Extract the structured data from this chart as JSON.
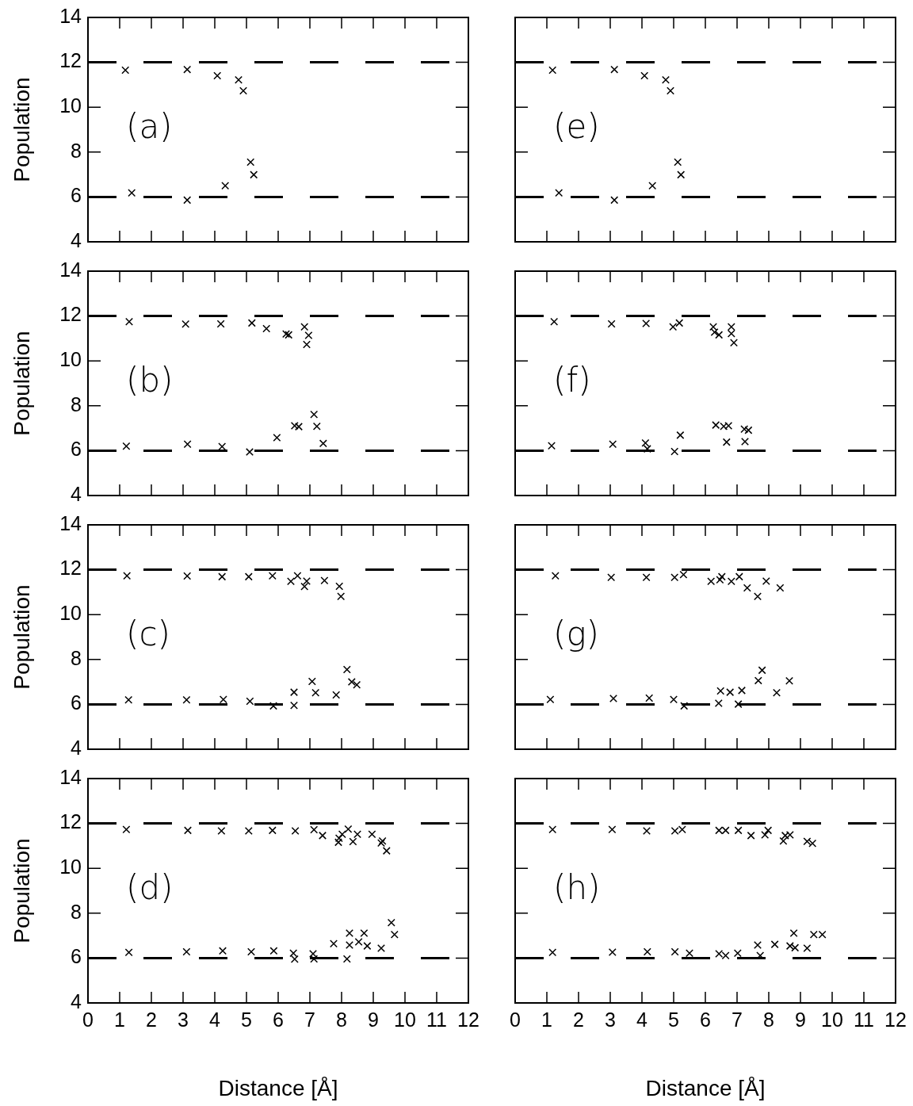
{
  "chart_data": [
    {
      "type": "scatter",
      "x": [
        1.18,
        3.13,
        4.08,
        4.75,
        4.9,
        1.38,
        3.13,
        4.33,
        5.13,
        5.23
      ],
      "values": [
        11.65,
        11.68,
        11.4,
        11.22,
        10.73,
        6.18,
        5.86,
        6.5,
        7.55,
        6.99
      ],
      "color": "#000000",
      "marker": "cross",
      "ylabel": "Population",
      "xlim": [
        0,
        12
      ],
      "ylim": [
        4,
        14
      ],
      "xticks": [
        0,
        1,
        2,
        3,
        4,
        5,
        6,
        7,
        8,
        9,
        10,
        11,
        12
      ],
      "yticks": [
        4,
        6,
        8,
        10,
        12,
        14
      ],
      "tick_labels": "y",
      "annotations": [
        "(a)"
      ],
      "ref_lines": [
        {
          "axis": "y",
          "value": 12,
          "line_style": "dashed"
        },
        {
          "axis": "y",
          "value": 6,
          "line_style": "dashed"
        }
      ]
    },
    {
      "type": "scatter",
      "x": [
        1.18,
        3.13,
        4.08,
        4.75,
        4.9,
        1.38,
        3.13,
        4.33,
        5.13,
        5.23
      ],
      "values": [
        11.65,
        11.68,
        11.4,
        11.22,
        10.73,
        6.18,
        5.86,
        6.5,
        7.55,
        6.99
      ],
      "color": "#000000",
      "marker": "cross",
      "xlim": [
        0,
        12
      ],
      "ylim": [
        4,
        14
      ],
      "xticks": [
        0,
        1,
        2,
        3,
        4,
        5,
        6,
        7,
        8,
        9,
        10,
        11,
        12
      ],
      "yticks": [
        4,
        6,
        8,
        10,
        12,
        14
      ],
      "tick_labels": false,
      "annotations": [
        "(e)"
      ],
      "ref_lines": [
        {
          "axis": "y",
          "value": 12,
          "line_style": "dashed"
        },
        {
          "axis": "y",
          "value": 6,
          "line_style": "dashed"
        }
      ]
    },
    {
      "type": "scatter",
      "x": [
        1.3,
        3.08,
        4.19,
        5.17,
        5.63,
        6.25,
        6.33,
        6.83,
        6.96,
        6.9,
        1.21,
        3.14,
        4.23,
        5.1,
        5.96,
        6.52,
        6.65,
        7.13,
        7.22,
        7.42
      ],
      "values": [
        11.75,
        11.64,
        11.65,
        11.69,
        11.44,
        11.2,
        11.16,
        11.52,
        11.14,
        10.73,
        6.2,
        6.29,
        6.18,
        5.94,
        6.58,
        7.11,
        7.07,
        7.61,
        7.08,
        6.32
      ],
      "color": "#000000",
      "marker": "cross",
      "ylabel": "Population",
      "xlim": [
        0,
        12
      ],
      "ylim": [
        4,
        14
      ],
      "xticks": [
        0,
        1,
        2,
        3,
        4,
        5,
        6,
        7,
        8,
        9,
        10,
        11,
        12
      ],
      "yticks": [
        4,
        6,
        8,
        10,
        12,
        14
      ],
      "tick_labels": "y",
      "annotations": [
        "(b)"
      ],
      "ref_lines": [
        {
          "axis": "y",
          "value": 12,
          "line_style": "dashed"
        },
        {
          "axis": "y",
          "value": 6,
          "line_style": "dashed"
        }
      ]
    },
    {
      "type": "scatter",
      "x": [
        1.23,
        3.04,
        4.13,
        4.98,
        5.18,
        6.25,
        6.29,
        6.43,
        6.82,
        6.82,
        6.9,
        1.15,
        3.08,
        4.11,
        4.17,
        5.03,
        5.21,
        6.33,
        6.58,
        6.73,
        6.67,
        7.23,
        7.36,
        7.25
      ],
      "values": [
        11.75,
        11.65,
        11.67,
        11.52,
        11.69,
        11.52,
        11.28,
        11.16,
        11.52,
        11.22,
        10.81,
        6.22,
        6.29,
        6.34,
        6.08,
        5.96,
        6.69,
        7.14,
        7.08,
        7.11,
        6.38,
        6.96,
        6.91,
        6.4
      ],
      "color": "#000000",
      "marker": "cross",
      "xlim": [
        0,
        12
      ],
      "ylim": [
        4,
        14
      ],
      "xticks": [
        0,
        1,
        2,
        3,
        4,
        5,
        6,
        7,
        8,
        9,
        10,
        11,
        12
      ],
      "yticks": [
        4,
        6,
        8,
        10,
        12,
        14
      ],
      "tick_labels": false,
      "annotations": [
        "(f)"
      ],
      "ref_lines": [
        {
          "axis": "y",
          "value": 12,
          "line_style": "dashed"
        },
        {
          "axis": "y",
          "value": 6,
          "line_style": "dashed"
        }
      ]
    },
    {
      "type": "scatter",
      "x": [
        1.23,
        3.13,
        4.23,
        5.07,
        5.82,
        6.4,
        6.61,
        6.83,
        6.9,
        7.46,
        7.93,
        7.98,
        1.28,
        3.11,
        4.27,
        5.11,
        5.85,
        6.5,
        6.5,
        7.07,
        7.18,
        7.83,
        8.17,
        8.32,
        8.48
      ],
      "values": [
        11.73,
        11.72,
        11.69,
        11.69,
        11.73,
        11.48,
        11.73,
        11.25,
        11.49,
        11.52,
        11.26,
        10.81,
        6.2,
        6.2,
        6.22,
        6.14,
        5.93,
        6.54,
        5.95,
        7.02,
        6.52,
        6.42,
        7.55,
        7.0,
        6.87
      ],
      "color": "#000000",
      "marker": "cross",
      "ylabel": "Population",
      "xlim": [
        0,
        12
      ],
      "ylim": [
        4,
        14
      ],
      "xticks": [
        0,
        1,
        2,
        3,
        4,
        5,
        6,
        7,
        8,
        9,
        10,
        11,
        12
      ],
      "yticks": [
        4,
        6,
        8,
        10,
        12,
        14
      ],
      "tick_labels": "y",
      "annotations": [
        "(c)"
      ],
      "ref_lines": [
        {
          "axis": "y",
          "value": 12,
          "line_style": "dashed"
        },
        {
          "axis": "y",
          "value": 6,
          "line_style": "dashed"
        }
      ]
    },
    {
      "type": "scatter",
      "x": [
        1.27,
        3.03,
        4.14,
        5.03,
        5.31,
        6.18,
        6.46,
        6.52,
        6.82,
        7.07,
        7.32,
        7.65,
        7.92,
        8.36,
        1.11,
        3.1,
        4.23,
        5.0,
        5.33,
        6.42,
        6.48,
        6.78,
        7.04,
        7.15,
        7.67,
        7.79,
        8.25,
        8.65
      ],
      "values": [
        11.73,
        11.66,
        11.66,
        11.66,
        11.78,
        11.48,
        11.55,
        11.69,
        11.48,
        11.69,
        11.19,
        10.81,
        11.49,
        11.19,
        6.22,
        6.26,
        6.28,
        6.22,
        5.93,
        6.05,
        6.6,
        6.54,
        6.01,
        6.62,
        7.06,
        7.52,
        6.52,
        7.05
      ],
      "color": "#000000",
      "marker": "cross",
      "xlim": [
        0,
        12
      ],
      "ylim": [
        4,
        14
      ],
      "xticks": [
        0,
        1,
        2,
        3,
        4,
        5,
        6,
        7,
        8,
        9,
        10,
        11,
        12
      ],
      "yticks": [
        4,
        6,
        8,
        10,
        12,
        14
      ],
      "tick_labels": false,
      "annotations": [
        "(g)"
      ],
      "ref_lines": [
        {
          "axis": "y",
          "value": 12,
          "line_style": "dashed"
        },
        {
          "axis": "y",
          "value": 6,
          "line_style": "dashed"
        }
      ]
    },
    {
      "type": "scatter",
      "x": [
        1.21,
        3.15,
        4.21,
        5.07,
        5.82,
        6.54,
        7.13,
        7.4,
        7.92,
        8.02,
        8.21,
        8.36,
        8.5,
        8.96,
        9.29,
        9.42,
        9.25,
        7.9,
        1.29,
        3.11,
        4.25,
        5.15,
        5.86,
        6.48,
        6.52,
        7.1,
        7.13,
        7.75,
        8.17,
        8.25,
        8.25,
        8.54,
        8.71,
        8.81,
        9.25,
        9.57,
        9.67
      ],
      "values": [
        11.73,
        11.69,
        11.67,
        11.67,
        11.69,
        11.67,
        11.72,
        11.46,
        11.34,
        11.52,
        11.75,
        11.19,
        11.52,
        11.52,
        11.22,
        10.78,
        11.13,
        11.16,
        6.25,
        6.28,
        6.32,
        6.28,
        6.32,
        6.22,
        5.95,
        6.19,
        5.96,
        6.64,
        5.96,
        7.11,
        6.58,
        6.72,
        7.11,
        6.54,
        6.44,
        7.58,
        7.05
      ],
      "color": "#000000",
      "marker": "cross",
      "ylabel": "Population",
      "xlabel": "Distance [Å]",
      "xlim": [
        0,
        12
      ],
      "ylim": [
        4,
        14
      ],
      "xticks": [
        0,
        1,
        2,
        3,
        4,
        5,
        6,
        7,
        8,
        9,
        10,
        11,
        12
      ],
      "yticks": [
        4,
        6,
        8,
        10,
        12,
        14
      ],
      "annotations": [
        "(d)"
      ],
      "ref_lines": [
        {
          "axis": "y",
          "value": 12,
          "line_style": "dashed"
        },
        {
          "axis": "y",
          "value": 6,
          "line_style": "dashed"
        }
      ]
    },
    {
      "type": "scatter",
      "x": [
        1.18,
        3.06,
        4.15,
        5.04,
        5.27,
        6.43,
        6.64,
        7.04,
        7.44,
        7.88,
        7.98,
        8.46,
        8.52,
        8.67,
        9.21,
        9.38,
        1.18,
        3.07,
        4.17,
        5.04,
        5.5,
        6.43,
        6.64,
        7.02,
        7.65,
        7.73,
        8.19,
        8.79,
        8.67,
        8.83,
        9.21,
        9.42,
        9.69
      ],
      "values": [
        11.73,
        11.73,
        11.67,
        11.67,
        11.73,
        11.69,
        11.69,
        11.69,
        11.46,
        11.49,
        11.69,
        11.22,
        11.46,
        11.49,
        11.2,
        11.11,
        6.25,
        6.26,
        6.28,
        6.28,
        6.22,
        6.19,
        6.11,
        6.22,
        6.58,
        6.11,
        6.61,
        7.11,
        6.54,
        6.46,
        6.44,
        7.05,
        7.05
      ],
      "color": "#000000",
      "marker": "cross",
      "xlabel": "Distance [Å]",
      "xlim": [
        0,
        12
      ],
      "ylim": [
        4,
        14
      ],
      "xticks": [
        0,
        1,
        2,
        3,
        4,
        5,
        6,
        7,
        8,
        9,
        10,
        11,
        12
      ],
      "yticks": [
        4,
        6,
        8,
        10,
        12,
        14
      ],
      "tick_labels": "x",
      "annotations": [
        "(h)"
      ],
      "ref_lines": [
        {
          "axis": "y",
          "value": 12,
          "line_style": "dashed"
        },
        {
          "axis": "y",
          "value": 6,
          "line_style": "dashed"
        }
      ]
    }
  ]
}
